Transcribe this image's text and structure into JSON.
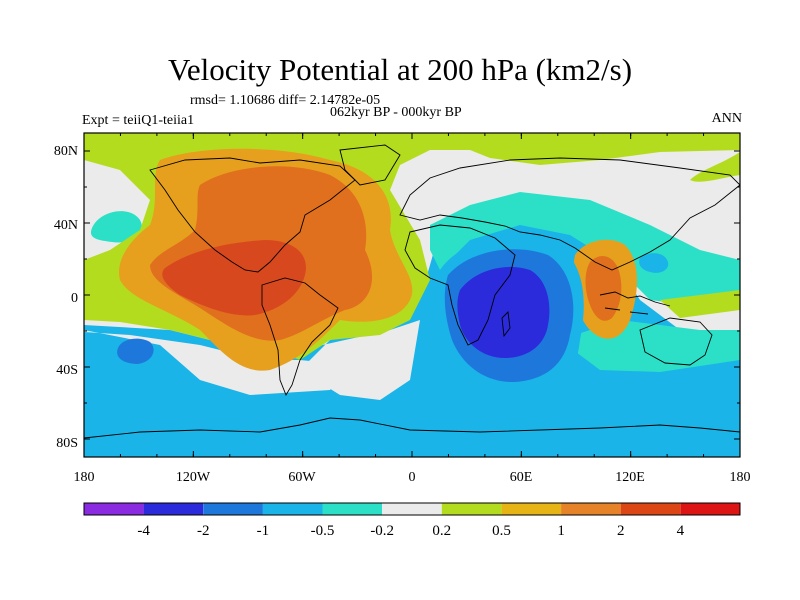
{
  "header": {
    "title": "Velocity Potential at 200 hPa (km2/s)",
    "stats": "rmsd= 1.10686 diff= 2.14782e-05",
    "period": "062kyr BP - 000kyr BP",
    "experiment": "Expt = teiiQ1-teiia1",
    "season": "ANN"
  },
  "map": {
    "lat_ticks": [
      "80N",
      "40N",
      "0",
      "40S",
      "80S"
    ],
    "lon_ticks": [
      "180",
      "120W",
      "60W",
      "0",
      "60E",
      "120E",
      "180"
    ],
    "lat_values": [
      80,
      40,
      0,
      -40,
      -80
    ],
    "lon_values": [
      -180,
      -120,
      -60,
      0,
      60,
      120,
      180
    ]
  },
  "colorbar": {
    "labels": [
      "-4",
      "-2",
      "-1",
      "-0.5",
      "-0.2",
      "0.2",
      "0.5",
      "1",
      "2",
      "4"
    ],
    "colors": [
      "#8a2be2",
      "#2b2bdc",
      "#1e78dc",
      "#1ab4e8",
      "#2ce0c8",
      "#ebebeb",
      "#b4dc1e",
      "#e6b414",
      "#e68228",
      "#dc4614",
      "#dc1414"
    ]
  },
  "palette": {
    "red": "#d8481e",
    "orange_dark": "#e0701e",
    "orange": "#e6a01e",
    "yellow_green": "#b4dc1e",
    "white": "#ebebeb",
    "cyan": "#2ce0c8",
    "sky": "#1ab4e8",
    "blue": "#1e78dc",
    "deep_blue": "#2b2bdc"
  }
}
